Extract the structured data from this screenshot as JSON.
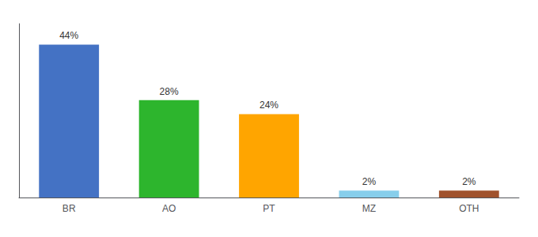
{
  "chart_data": {
    "type": "bar",
    "categories": [
      "BR",
      "AO",
      "PT",
      "MZ",
      "OTH"
    ],
    "values": [
      44,
      28,
      24,
      2,
      2
    ],
    "value_labels": [
      "44%",
      "28%",
      "24%",
      "2%",
      "2%"
    ],
    "colors": [
      "#4472c4",
      "#2db52d",
      "#ffa500",
      "#87ceeb",
      "#a0522d"
    ],
    "ylim": [
      0,
      50
    ],
    "grid": false,
    "data_labels": true,
    "tick_labels": "x"
  }
}
